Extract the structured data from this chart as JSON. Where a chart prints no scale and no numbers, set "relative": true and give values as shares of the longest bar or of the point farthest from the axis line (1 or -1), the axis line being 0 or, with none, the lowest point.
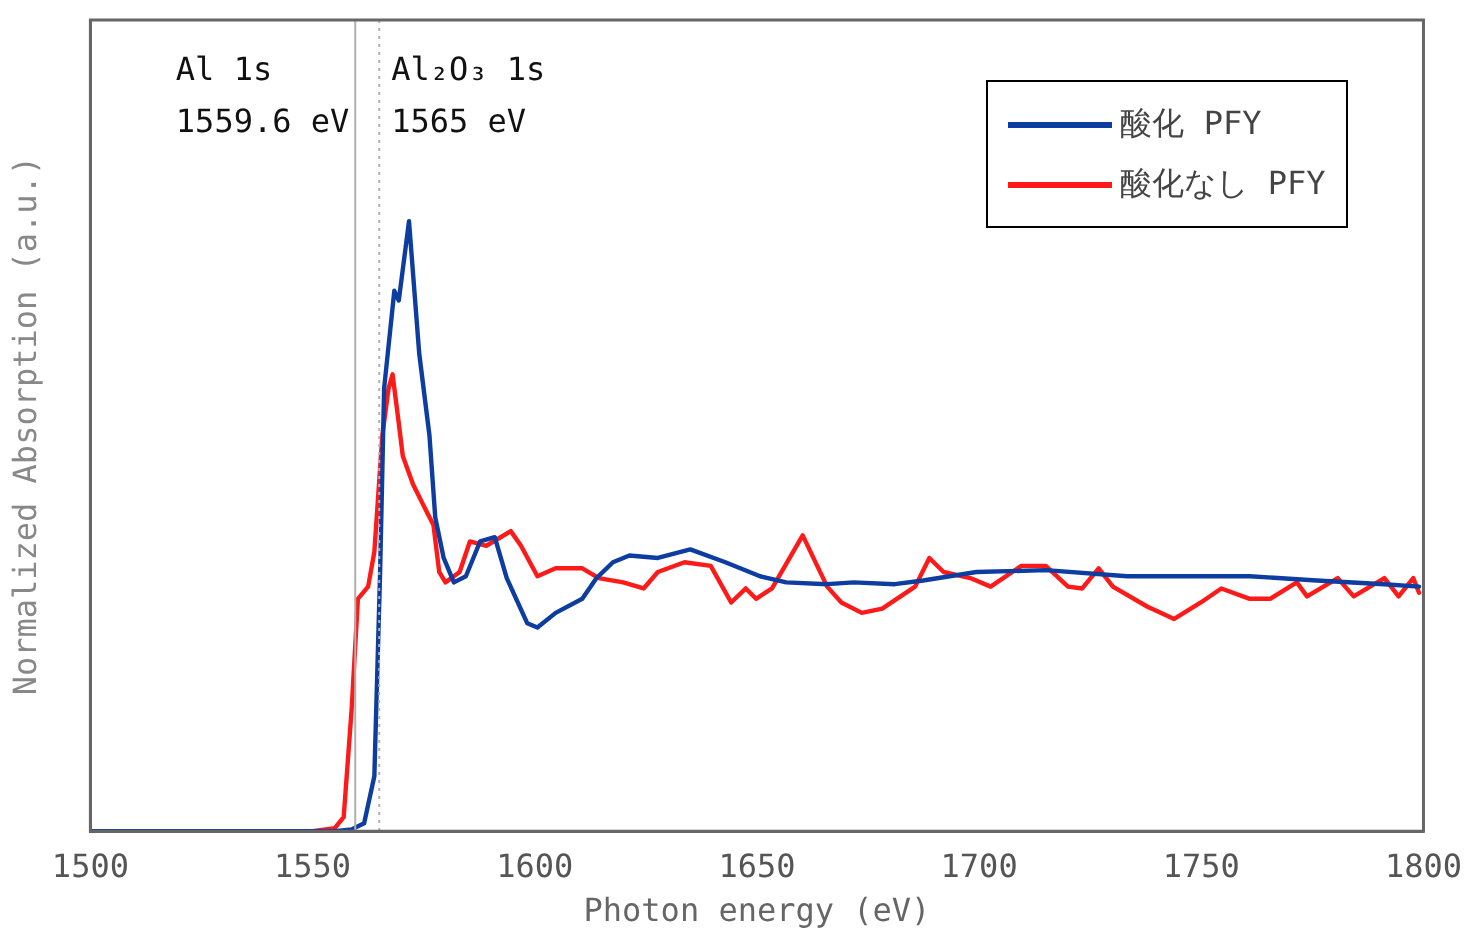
{
  "chart_data": {
    "type": "line",
    "relative": true,
    "xlabel": "Photon energy (eV)",
    "ylabel": "Normalized Absorption (a.u.)",
    "xlim": [
      1500,
      1800
    ],
    "xticks": [
      1500,
      1550,
      1600,
      1650,
      1700,
      1750,
      1800
    ],
    "tick_labels": "x",
    "legend": "top right",
    "grid": false,
    "marker": "none",
    "line_style": "solid",
    "ref_lines": [
      {
        "axis": "x",
        "value": 1559.6,
        "label": "Al 1s\n1559.6 eV",
        "color": "#b0b0b0",
        "line_style": "solid"
      },
      {
        "axis": "x",
        "value": 1565,
        "label": "Al₂O₃ 1s\n1565 eV",
        "color": "#b0b0b0",
        "line_style": "dotted"
      }
    ],
    "series": [
      {
        "name": "酸化 PFY",
        "color": "#0d3da0",
        "x": [
          1500,
          1555,
          1558.8,
          1561.6,
          1563.9,
          1565.2,
          1566.1,
          1568.4,
          1569.4,
          1571.7,
          1574,
          1576.3,
          1577.6,
          1579.5,
          1581.8,
          1584.5,
          1587.7,
          1591,
          1593.7,
          1598.3,
          1600.6,
          1604.7,
          1610.7,
          1613.9,
          1617.6,
          1621.3,
          1627.7,
          1635,
          1642.9,
          1650.7,
          1656.6,
          1665.8,
          1671.8,
          1681,
          1687.4,
          1693.4,
          1699.4,
          1715,
          1733.3,
          1760.9,
          1776,
          1791.2,
          1799
        ],
        "values": [
          0,
          0,
          0.003,
          0.013,
          0.09,
          0.425,
          0.726,
          0.886,
          0.87,
          1,
          0.783,
          0.649,
          0.515,
          0.448,
          0.408,
          0.418,
          0.475,
          0.482,
          0.415,
          0.341,
          0.334,
          0.358,
          0.381,
          0.415,
          0.441,
          0.452,
          0.448,
          0.462,
          0.441,
          0.418,
          0.408,
          0.405,
          0.408,
          0.405,
          0.411,
          0.418,
          0.425,
          0.428,
          0.418,
          0.418,
          0.411,
          0.405,
          0.401
        ]
      },
      {
        "name": "酸化なし PFY",
        "color": "#ff1a1a",
        "x": [
          1500,
          1550,
          1555,
          1557,
          1558.8,
          1560.2,
          1562.5,
          1563.9,
          1565.7,
          1567.1,
          1568,
          1569.4,
          1570.3,
          1572.6,
          1574.9,
          1577.2,
          1578.5,
          1579.9,
          1583.1,
          1585.4,
          1589.1,
          1594.6,
          1596.9,
          1600.6,
          1604.7,
          1610.7,
          1614.4,
          1619.9,
          1624.5,
          1627.7,
          1633.7,
          1639.6,
          1644.2,
          1647.5,
          1649.8,
          1653.4,
          1660.3,
          1665.8,
          1669,
          1673.6,
          1678.2,
          1685.6,
          1688.8,
          1692,
          1698,
          1702.6,
          1709.5,
          1715,
          1720,
          1723.2,
          1726.9,
          1730.1,
          1737.9,
          1743.9,
          1749.9,
          1754.5,
          1760.9,
          1765.5,
          1771.5,
          1773.8,
          1780.7,
          1784.3,
          1791.2,
          1794.4,
          1797.7,
          1799
        ],
        "values": [
          0,
          0,
          0.005,
          0.023,
          0.201,
          0.381,
          0.401,
          0.458,
          0.649,
          0.726,
          0.749,
          0.669,
          0.615,
          0.569,
          0.535,
          0.502,
          0.425,
          0.408,
          0.425,
          0.475,
          0.468,
          0.492,
          0.468,
          0.418,
          0.431,
          0.431,
          0.415,
          0.408,
          0.398,
          0.425,
          0.441,
          0.435,
          0.375,
          0.398,
          0.381,
          0.398,
          0.485,
          0.401,
          0.375,
          0.358,
          0.365,
          0.401,
          0.448,
          0.425,
          0.415,
          0.401,
          0.435,
          0.435,
          0.401,
          0.398,
          0.431,
          0.401,
          0.368,
          0.348,
          0.375,
          0.398,
          0.381,
          0.381,
          0.408,
          0.385,
          0.415,
          0.385,
          0.415,
          0.385,
          0.415,
          0.391
        ]
      }
    ]
  }
}
